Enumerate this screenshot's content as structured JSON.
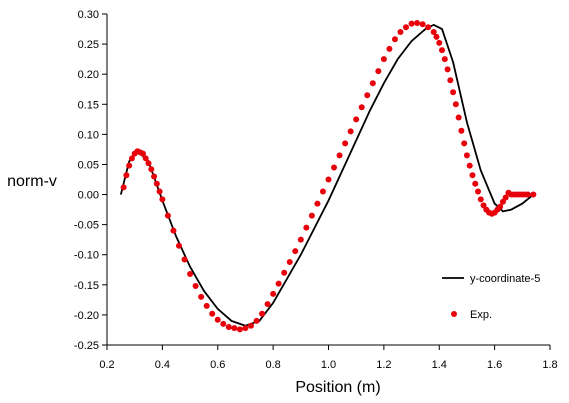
{
  "chart_data": {
    "type": "scatter",
    "xlabel": "Position (m)",
    "ylabel": "norm-v",
    "xlim": [
      0.2,
      1.8
    ],
    "ylim": [
      -0.25,
      0.3
    ],
    "x_ticks": [
      "0.2",
      "0.4",
      "0.6",
      "0.8",
      "1.0",
      "1.2",
      "1.4",
      "1.6",
      "1.8"
    ],
    "y_ticks": [
      "0.30",
      "0.25",
      "0.20",
      "0.15",
      "0.10",
      "0.05",
      "0.00",
      "-0.05",
      "-0.10",
      "-0.15",
      "-0.20",
      "-0.25"
    ],
    "grid": false,
    "legend_position": "bottom-right",
    "colors": {
      "line": "#000000",
      "points": "#e8000b"
    },
    "series": [
      {
        "name": "y-coordinate-5",
        "kind": "line",
        "x": [
          0.25,
          0.28,
          0.31,
          0.35,
          0.4,
          0.45,
          0.5,
          0.55,
          0.6,
          0.65,
          0.7,
          0.75,
          0.8,
          0.85,
          0.9,
          0.95,
          1.0,
          1.05,
          1.1,
          1.15,
          1.2,
          1.25,
          1.3,
          1.35,
          1.38,
          1.41,
          1.45,
          1.5,
          1.55,
          1.6,
          1.63,
          1.66,
          1.7,
          1.74
        ],
        "y": [
          0.0,
          0.055,
          0.072,
          0.055,
          -0.01,
          -0.07,
          -0.12,
          -0.16,
          -0.19,
          -0.21,
          -0.218,
          -0.21,
          -0.18,
          -0.14,
          -0.1,
          -0.055,
          -0.01,
          0.04,
          0.09,
          0.14,
          0.185,
          0.225,
          0.255,
          0.275,
          0.282,
          0.275,
          0.22,
          0.12,
          0.04,
          -0.015,
          -0.028,
          -0.025,
          -0.015,
          0.0
        ]
      },
      {
        "name": "Exp.",
        "kind": "scatter",
        "x": [
          0.26,
          0.27,
          0.28,
          0.29,
          0.3,
          0.31,
          0.32,
          0.33,
          0.34,
          0.35,
          0.36,
          0.37,
          0.38,
          0.39,
          0.4,
          0.42,
          0.44,
          0.46,
          0.48,
          0.5,
          0.52,
          0.54,
          0.56,
          0.58,
          0.6,
          0.62,
          0.64,
          0.66,
          0.68,
          0.7,
          0.72,
          0.74,
          0.76,
          0.78,
          0.8,
          0.82,
          0.84,
          0.86,
          0.88,
          0.9,
          0.92,
          0.94,
          0.96,
          0.98,
          1.0,
          1.02,
          1.04,
          1.06,
          1.08,
          1.1,
          1.12,
          1.14,
          1.16,
          1.18,
          1.2,
          1.22,
          1.24,
          1.26,
          1.28,
          1.3,
          1.32,
          1.34,
          1.36,
          1.38,
          1.39,
          1.4,
          1.41,
          1.42,
          1.43,
          1.44,
          1.45,
          1.46,
          1.47,
          1.48,
          1.49,
          1.5,
          1.51,
          1.52,
          1.53,
          1.54,
          1.55,
          1.56,
          1.57,
          1.58,
          1.59,
          1.6,
          1.61,
          1.62,
          1.63,
          1.64,
          1.65,
          1.66,
          1.67,
          1.68,
          1.69,
          1.7,
          1.71,
          1.72,
          1.74
        ],
        "y": [
          0.012,
          0.032,
          0.048,
          0.06,
          0.068,
          0.072,
          0.07,
          0.068,
          0.06,
          0.052,
          0.042,
          0.03,
          0.018,
          0.005,
          -0.008,
          -0.035,
          -0.06,
          -0.085,
          -0.108,
          -0.132,
          -0.152,
          -0.17,
          -0.185,
          -0.198,
          -0.208,
          -0.215,
          -0.22,
          -0.222,
          -0.224,
          -0.222,
          -0.218,
          -0.21,
          -0.198,
          -0.182,
          -0.165,
          -0.148,
          -0.13,
          -0.112,
          -0.094,
          -0.075,
          -0.055,
          -0.035,
          -0.015,
          0.005,
          0.025,
          0.045,
          0.065,
          0.085,
          0.105,
          0.125,
          0.145,
          0.165,
          0.185,
          0.205,
          0.225,
          0.242,
          0.258,
          0.27,
          0.278,
          0.284,
          0.285,
          0.283,
          0.278,
          0.27,
          0.262,
          0.252,
          0.24,
          0.225,
          0.208,
          0.19,
          0.17,
          0.15,
          0.128,
          0.106,
          0.085,
          0.065,
          0.048,
          0.032,
          0.018,
          0.005,
          -0.008,
          -0.018,
          -0.025,
          -0.03,
          -0.032,
          -0.03,
          -0.025,
          -0.02,
          -0.012,
          -0.005,
          0.003,
          0.0,
          0.0,
          0.0,
          0.0,
          0.0,
          0.0,
          0.0,
          0.0
        ]
      }
    ]
  }
}
